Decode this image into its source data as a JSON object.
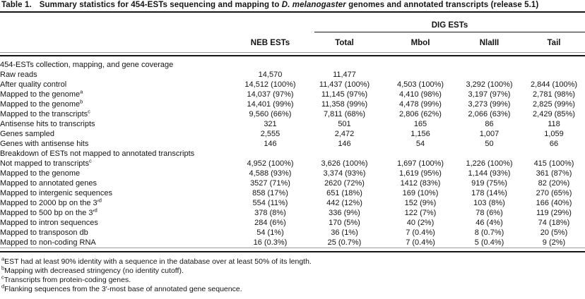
{
  "table": {
    "title_label": "Table 1.",
    "caption_pre": "Summary statistics for 454-ESTs sequencing and mapping to",
    "caption_species": "D. melanogaster",
    "caption_post": "genomes and annotated transcripts (release 5.1)",
    "spanner_label": "DIG ESTs",
    "columns": [
      "NEB ESTs",
      "Total",
      "MboI",
      "NlaIII",
      "Tail"
    ],
    "sections": [
      {
        "header": "454-ESTs collection, mapping, and gene coverage",
        "rows": [
          {
            "label": "Raw reads",
            "values": [
              "14,570",
              "11,477",
              "",
              "",
              ""
            ]
          },
          {
            "label": "After quality control",
            "values": [
              "14,512 (100%)",
              "11,437 (100%)",
              "4,503 (100%)",
              "3,292 (100%)",
              "2,844 (100%)"
            ]
          },
          {
            "label": "Mapped to the genome",
            "sup": "a",
            "values": [
              "14,037 (97%)",
              "11,145 (97%)",
              "4,410 (98%)",
              "3,197 (97%)",
              "2,781 (98%)"
            ]
          },
          {
            "label": "Mapped to the genome",
            "sup": "b",
            "values": [
              "14,401 (99%)",
              "11,358 (99%)",
              "4,478 (99%)",
              "3,273 (99%)",
              "2,825 (99%)"
            ]
          },
          {
            "label": "Mapped to the transcripts",
            "sup": "c",
            "values": [
              "9,560 (66%)",
              "7,811 (68%)",
              "2,806 (62%)",
              "2,066 (63%)",
              "2,429 (85%)"
            ]
          },
          {
            "label": "Antisense hits to transcripts",
            "values": [
              "321",
              "501",
              "165",
              "86",
              "118"
            ]
          },
          {
            "label": "Genes sampled",
            "values": [
              "2,555",
              "2,472",
              "1,156",
              "1,007",
              "1,059"
            ]
          },
          {
            "label": "Genes with antisense hits",
            "values": [
              "146",
              "146",
              "54",
              "50",
              "66"
            ]
          }
        ]
      },
      {
        "header": "Breakdown of ESTs not mapped to annotated transcripts",
        "rows": [
          {
            "label": "Not mapped to transcripts",
            "sup": "c",
            "values": [
              "4,952 (100%)",
              "3,626 (100%)",
              "1,697 (100%)",
              "1,226 (100%)",
              "415 (100%)"
            ]
          },
          {
            "label": "Mapped to the genome",
            "values": [
              "4,588 (93%)",
              "3,374 (93%)",
              "1,619 (95%)",
              "1,144 (93%)",
              "361 (87%)"
            ]
          },
          {
            "label": "Mapped to annotated genes",
            "values": [
              "3527 (71%)",
              "2620 (72%)",
              "1412 (83%)",
              "919 (75%)",
              "82 (20%)"
            ]
          },
          {
            "label": "Mapped to intergenic sequences",
            "values": [
              "858 (17%)",
              "651 (18%)",
              "169 (10%)",
              "178 (14%)",
              "270 (65%)"
            ]
          },
          {
            "label": "Mapped to 2000 bp on the 3′",
            "sup": "d",
            "values": [
              "554 (11%)",
              "442 (12%)",
              "152 (9%)",
              "103 (8%)",
              "166 (40%)"
            ]
          },
          {
            "label": "Mapped to 500 bp on the 3′",
            "sup": "d",
            "values": [
              "378 (8%)",
              "336 (9%)",
              "122 (7%)",
              "78 (6%)",
              "119 (29%)"
            ]
          },
          {
            "label": "Mapped to intron sequences",
            "values": [
              "284 (6%)",
              "170 (5%)",
              "40 (2%)",
              "46 (4%)",
              "74 (18%)"
            ]
          },
          {
            "label": "Mapped to transposon db",
            "values": [
              "54 (1%)",
              "36 (1%)",
              "7 (0.4%)",
              "8 (0.7%)",
              "20 (5%)"
            ]
          },
          {
            "label": "Mapped to non-coding RNA",
            "values": [
              "16 (0.3%)",
              "25 (0.7%)",
              "7 (0.4%)",
              "5 (0.4%)",
              "9 (2%)"
            ]
          }
        ]
      }
    ],
    "footnotes": [
      {
        "marker": "a",
        "text": "EST had at least 90% identity with a sequence in the database over at least 50% of its length."
      },
      {
        "marker": "b",
        "text": "Mapping with decreased stringency (no identity cutoff)."
      },
      {
        "marker": "c",
        "text": "Transcripts from protein-coding genes."
      },
      {
        "marker": "d",
        "text": "Flanking sequences from the 3′-most base of annotated gene sequence."
      }
    ]
  }
}
